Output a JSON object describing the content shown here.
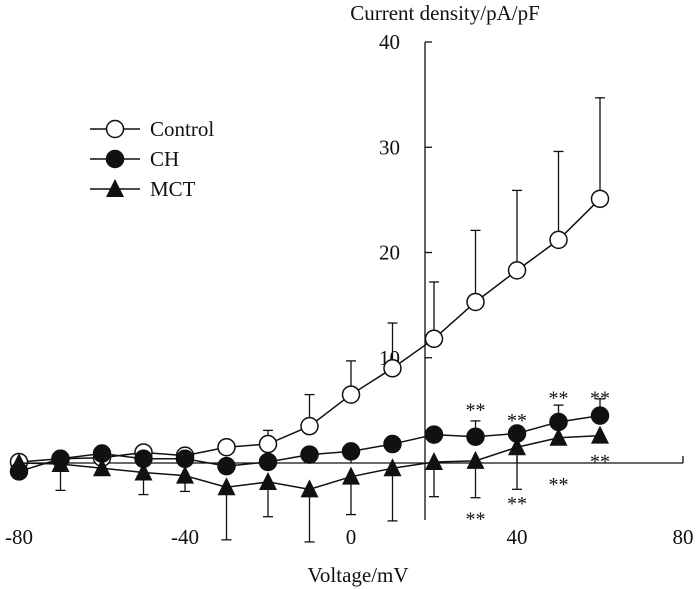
{
  "chart_data": {
    "type": "line",
    "title": "",
    "xlabel": "Voltage/mV",
    "ylabel": "Current density/pA/pF",
    "xlim": [
      -80,
      80
    ],
    "ylim": [
      -5,
      40
    ],
    "x_ticks": [
      -80,
      -40,
      0,
      40,
      80
    ],
    "y_ticks": [
      10,
      20,
      30,
      40
    ],
    "x_tick_labels": [
      "-80",
      "-40",
      "0",
      "40",
      "80"
    ],
    "y_tick_labels": [
      "10",
      "20",
      "30",
      "40"
    ],
    "grid": false,
    "legend_position": "upper-left",
    "series": [
      {
        "name": "Control",
        "marker": "circle-open",
        "x": [
          -80,
          -70,
          -60,
          -50,
          -40,
          -30,
          -20,
          -10,
          0,
          10,
          20,
          30,
          40,
          50,
          60
        ],
        "y": [
          0.1,
          0.4,
          0.5,
          1.0,
          0.7,
          1.5,
          1.8,
          3.5,
          6.5,
          9.0,
          11.8,
          15.3,
          18.3,
          21.2,
          25.1
        ],
        "error_plus": [
          0,
          0,
          0,
          0,
          0,
          0,
          1.3,
          3.0,
          3.2,
          4.3,
          5.4,
          6.8,
          7.6,
          8.4,
          9.6
        ],
        "error_minus": [
          0,
          0,
          0,
          0,
          0,
          0,
          0,
          0,
          0,
          0,
          0,
          0,
          0,
          0,
          0
        ]
      },
      {
        "name": "CH",
        "marker": "circle-filled",
        "x": [
          -80,
          -70,
          -60,
          -50,
          -40,
          -30,
          -20,
          -10,
          0,
          10,
          20,
          30,
          40,
          50,
          60
        ],
        "y": [
          -0.8,
          0.4,
          0.9,
          0.4,
          0.4,
          -0.3,
          0.1,
          0.8,
          1.1,
          1.8,
          2.7,
          2.5,
          2.8,
          3.9,
          4.5
        ],
        "error_plus": [
          0,
          0,
          0,
          0,
          0,
          0,
          0,
          0,
          0,
          0,
          0,
          1.5,
          0,
          1.6,
          1.6
        ],
        "error_minus": [
          0,
          0,
          0,
          0,
          0,
          0,
          0,
          0,
          0,
          0,
          0,
          0,
          0,
          0,
          0
        ]
      },
      {
        "name": "MCT",
        "marker": "triangle-filled",
        "x": [
          -80,
          -70,
          -60,
          -50,
          -40,
          -30,
          -20,
          -10,
          0,
          10,
          20,
          30,
          40,
          50,
          60
        ],
        "y": [
          0.0,
          -0.1,
          -0.5,
          -0.9,
          -1.2,
          -2.3,
          -1.8,
          -2.5,
          -1.3,
          -0.5,
          0.1,
          0.2,
          1.5,
          2.4,
          2.6
        ],
        "error_plus": [
          0,
          0,
          0,
          0,
          0,
          0,
          0,
          0,
          0,
          0,
          0,
          0,
          0,
          0,
          0
        ],
        "error_minus": [
          0,
          2.5,
          0.5,
          2.1,
          1.5,
          5.0,
          3.3,
          5.0,
          3.6,
          5.0,
          3.3,
          3.5,
          4.0,
          0,
          0
        ]
      }
    ],
    "annotations": [
      {
        "text": "**",
        "x": 30,
        "y": 5.2
      },
      {
        "text": "**",
        "x": 40,
        "y": 4.2
      },
      {
        "text": "**",
        "x": 50,
        "y": 6.3
      },
      {
        "text": "**",
        "x": 60,
        "y": 6.3
      },
      {
        "text": "**",
        "x": 60,
        "y": 0.3
      },
      {
        "text": "**",
        "x": 50,
        "y": -1.9
      },
      {
        "text": "**",
        "x": 40,
        "y": -3.7
      },
      {
        "text": "**",
        "x": 30,
        "y": -5.2
      }
    ]
  }
}
